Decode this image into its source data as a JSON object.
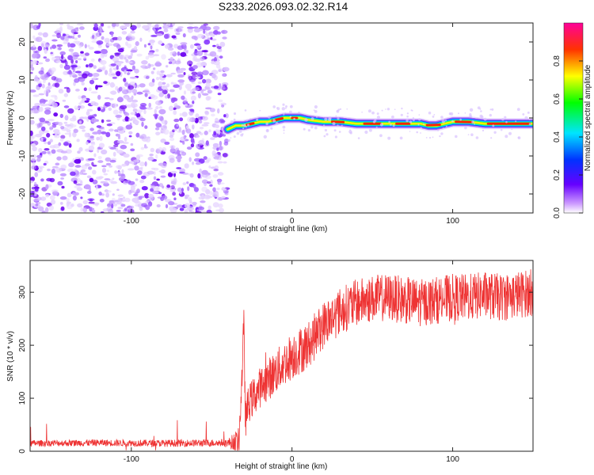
{
  "title": "S233.2026.093.02.32.R14",
  "chart_data": [
    {
      "type": "heatmap",
      "name": "spectrogram",
      "xlabel": "Height of straight line (km)",
      "ylabel": "Frequency (Hz)",
      "xlim": [
        -163,
        150
      ],
      "ylim": [
        -25,
        25
      ],
      "xticks": [
        -100,
        0,
        100
      ],
      "yticks": [
        -20,
        -10,
        0,
        10,
        20
      ],
      "colorbar": {
        "label": "Normalized spectral amplitude",
        "range": [
          0,
          1
        ],
        "ticks": [
          "0.0",
          "0.2",
          "0.4",
          "0.6",
          "0.8"
        ]
      },
      "noise_region_x": [
        -163,
        -40
      ],
      "signal_track": {
        "x": [
          -40,
          -35,
          -30,
          -25,
          -20,
          -15,
          -10,
          -5,
          0,
          5,
          10,
          20,
          30,
          40,
          50,
          60,
          70,
          80,
          85,
          90,
          95,
          100,
          110,
          120,
          130,
          140,
          150
        ],
        "freq_hz": [
          -3,
          -2,
          -2,
          -1.5,
          -1,
          -1,
          -0.5,
          0,
          0,
          0,
          -0.5,
          -1,
          -1,
          -1.5,
          -1.5,
          -1.5,
          -1.5,
          -1.5,
          -2,
          -2,
          -1.5,
          -1,
          -1,
          -1.5,
          -1.5,
          -1.5,
          -1.5
        ]
      }
    },
    {
      "type": "line",
      "name": "snr",
      "xlabel": "Height of straight line (km)",
      "ylabel": "SNR (10 * v/v)",
      "xlim": [
        -163,
        150
      ],
      "ylim": [
        0,
        360
      ],
      "xticks": [
        -100,
        0,
        100
      ],
      "yticks": [
        0,
        100,
        200,
        300
      ],
      "color": "#ee3333",
      "trend": {
        "x": [
          -163,
          -120,
          -80,
          -40,
          -33,
          -31,
          -30,
          -29,
          -27,
          -20,
          -10,
          0,
          10,
          20,
          30,
          40,
          50,
          60,
          70,
          80,
          90,
          100,
          110,
          120,
          130,
          140,
          150
        ],
        "y": [
          15,
          16,
          15,
          16,
          18,
          150,
          240,
          60,
          90,
          120,
          150,
          180,
          200,
          240,
          265,
          280,
          288,
          290,
          285,
          280,
          285,
          290,
          290,
          295,
          290,
          295,
          300
        ]
      },
      "noise_amplitude": {
        "x": [
          -163,
          -40,
          -30,
          0,
          50,
          150
        ],
        "amp": [
          6,
          7,
          35,
          45,
          45,
          45
        ]
      }
    }
  ]
}
